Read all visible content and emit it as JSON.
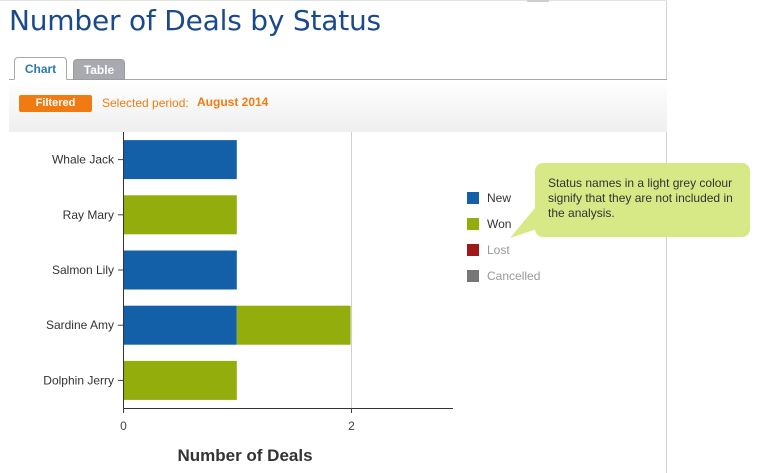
{
  "page": {
    "title": "Number of Deals by Status"
  },
  "tabs": [
    {
      "label": "Chart",
      "active": true
    },
    {
      "label": "Table",
      "active": false
    }
  ],
  "filter": {
    "badge": "Filtered",
    "period_label": "Selected period:",
    "period_value": "August 2014"
  },
  "colors": {
    "New": "#1460a8",
    "Won": "#92ad0c",
    "Lost": "#a01818",
    "Cancelled": "#777777",
    "callout_bg": "#d7e886",
    "accent": "#f07b12"
  },
  "chart_data": {
    "type": "bar",
    "orientation": "horizontal",
    "stacked": true,
    "categories": [
      "Whale Jack",
      "Ray Mary",
      "Salmon Lily",
      "Sardine Amy",
      "Dolphin Jerry"
    ],
    "series": [
      {
        "name": "New",
        "values": [
          1,
          0,
          1,
          1,
          0
        ],
        "included": true
      },
      {
        "name": "Won",
        "values": [
          0,
          1,
          0,
          1,
          1
        ],
        "included": true
      },
      {
        "name": "Lost",
        "values": [
          0,
          0,
          0,
          0,
          0
        ],
        "included": false
      },
      {
        "name": "Cancelled",
        "values": [
          0,
          0,
          0,
          0,
          0
        ],
        "included": false
      }
    ],
    "xlabel": "Number of Deals",
    "xlim": [
      0,
      2.9
    ],
    "xticks": [
      0,
      2
    ],
    "grid": true,
    "legend_position": "right"
  },
  "callout": {
    "text": "Status names in a light grey colour signify that they are not included in the analysis."
  }
}
